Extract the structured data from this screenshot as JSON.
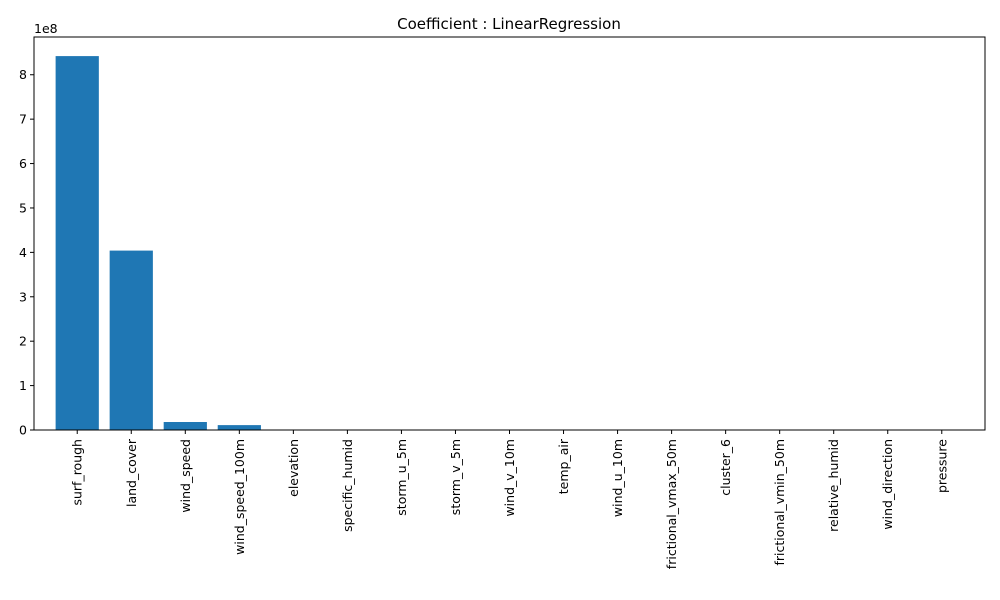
{
  "chart_data": {
    "type": "bar",
    "title": "Coefficient : LinearRegression",
    "xlabel": "",
    "ylabel": "",
    "y_scale_label": "1e8",
    "y_scale_factor": 100000000,
    "ylim": [
      0,
      8.85
    ],
    "yticks": [
      0,
      1,
      2,
      3,
      4,
      5,
      6,
      7,
      8
    ],
    "grid": false,
    "bar_color": "#1f77b4",
    "categories": [
      "surf_rough",
      "land_cover",
      "wind_speed",
      "wind_speed_100m",
      "elevation",
      "specific_humid",
      "storm_u_5m",
      "storm_v_5m",
      "wind_v_10m",
      "temp_air",
      "wind_u_10m",
      "frictional_vmax_50m",
      "cluster_6",
      "frictional_vmin_50m",
      "relative_humid",
      "wind_direction",
      "pressure"
    ],
    "values": [
      8.42,
      4.04,
      0.18,
      0.11,
      0,
      0,
      0,
      0,
      0,
      0,
      0,
      0,
      0,
      0,
      0,
      0,
      0
    ]
  }
}
